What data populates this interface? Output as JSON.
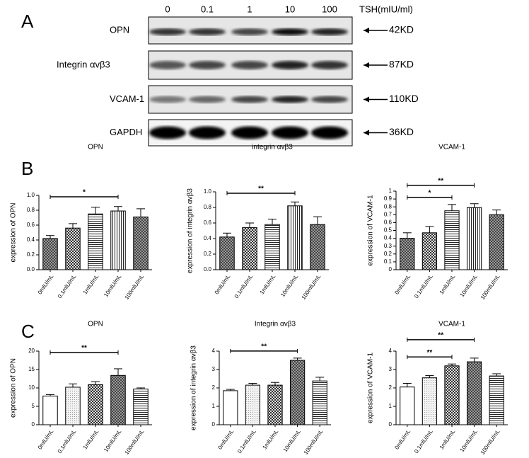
{
  "panel_labels": [
    "A",
    "B",
    "C"
  ],
  "blot": {
    "lanes": [
      "0",
      "0.1",
      "1",
      "10",
      "100"
    ],
    "unit": "TSH(mIU/ml)",
    "rows": [
      {
        "label": "OPN",
        "size": "42KD"
      },
      {
        "label": "Integrin αvβ3",
        "size": "87KD"
      },
      {
        "label": "VCAM-1",
        "size": "110KD"
      },
      {
        "label": "GAPDH",
        "size": "36KD"
      }
    ]
  },
  "chart_data": [
    {
      "type": "bar",
      "title": "OPN",
      "ylabel": "expression of OPN",
      "categories": [
        "0mlU/mL",
        "0.1mlU/mL",
        "1mlU/mL",
        "10mlU/mL",
        "100mlU/mL"
      ],
      "values": [
        0.42,
        0.56,
        0.75,
        0.79,
        0.71
      ],
      "error": [
        0.04,
        0.06,
        0.09,
        0.06,
        0.11
      ],
      "fills": [
        "check-dark",
        "check",
        "hlines",
        "vlines",
        "check-dark"
      ],
      "ylim": [
        0,
        1
      ],
      "yticks": [
        {
          "value": 0,
          "label": "0.0"
        },
        0.2,
        0.4,
        0.6,
        0.8,
        {
          "value": 1,
          "label": "1.0"
        }
      ],
      "brackets": [
        {
          "label": "*",
          "from": 0,
          "to": 3
        }
      ]
    },
    {
      "type": "bar",
      "title": "integrin αvβ3",
      "ylabel": "expression of integrin αvβ3",
      "categories": [
        "0mlU/mL",
        "0.1mlU/mL",
        "1mlU/mL",
        "10mlU/mL",
        "100mlU/mL"
      ],
      "values": [
        0.42,
        0.54,
        0.58,
        0.82,
        0.58
      ],
      "error": [
        0.05,
        0.06,
        0.07,
        0.05,
        0.1
      ],
      "fills": [
        "check-dark",
        "check",
        "hlines",
        "vlines",
        "check-dark"
      ],
      "ylim": [
        0,
        1
      ],
      "yticks": [
        {
          "value": 0,
          "label": "0.0"
        },
        0.2,
        0.4,
        0.6,
        0.8,
        {
          "value": 1,
          "label": "1.0"
        }
      ],
      "brackets": [
        {
          "label": "**",
          "from": 0,
          "to": 3
        }
      ]
    },
    {
      "type": "bar",
      "title": "VCAM-1",
      "ylabel": "expression of VCAM-1",
      "categories": [
        "0mlU/mL",
        "0.1mlU/mL",
        "1mlU/mL",
        "10mlU/mL",
        "100mlU/mL"
      ],
      "values": [
        0.4,
        0.47,
        0.75,
        0.79,
        0.7
      ],
      "error": [
        0.07,
        0.08,
        0.08,
        0.05,
        0.06
      ],
      "fills": [
        "check-dark",
        "check",
        "hlines",
        "vlines",
        "check-dark"
      ],
      "ylim": [
        0,
        1
      ],
      "yticks": [
        0,
        0.1,
        0.2,
        0.3,
        0.4,
        0.5,
        0.6,
        0.7,
        0.8,
        0.9,
        1
      ],
      "brackets": [
        {
          "label": "*",
          "from": 0,
          "to": 2
        },
        {
          "label": "**",
          "from": 0,
          "to": 3
        }
      ]
    },
    {
      "type": "bar",
      "title": "OPN",
      "ylabel": "expression of OPN",
      "categories": [
        "0mlU/mL",
        "0.1mlU/mL",
        "1mlU/mL",
        "10mlU/mL",
        "100mlU/mL"
      ],
      "values": [
        7.8,
        10.2,
        10.9,
        13.4,
        9.7
      ],
      "error": [
        0.4,
        0.9,
        0.8,
        1.8,
        0.3
      ],
      "fills": [
        "white",
        "dots",
        "check",
        "check-dark",
        "hlines"
      ],
      "ylim": [
        0,
        20
      ],
      "yticks": [
        0,
        5,
        10,
        15,
        20
      ],
      "brackets": [
        {
          "label": "**",
          "from": 0,
          "to": 3
        }
      ]
    },
    {
      "type": "bar",
      "title": "Integrin αvβ3",
      "ylabel": "expression of integrin αvβ3",
      "categories": [
        "0mlU/mL",
        "0.1mlU/mL",
        "1mlU/mL",
        "10mlU/mL",
        "100mlU/mL"
      ],
      "values": [
        1.85,
        2.15,
        2.15,
        3.5,
        2.38
      ],
      "error": [
        0.07,
        0.1,
        0.15,
        0.12,
        0.2
      ],
      "fills": [
        "white",
        "dots",
        "check",
        "check-dark",
        "hlines"
      ],
      "ylim": [
        0,
        4
      ],
      "yticks": [
        0,
        1,
        2,
        3,
        4
      ],
      "brackets": [
        {
          "label": "**",
          "from": 0,
          "to": 3
        }
      ]
    },
    {
      "type": "bar",
      "title": "VCAM-1",
      "ylabel": "expression of VCAM-1",
      "categories": [
        "0mlU/mL",
        "0.1mlU/mL",
        "1mlU/mL",
        "10mlU/mL",
        "100mlU/mL"
      ],
      "values": [
        2.05,
        2.55,
        3.2,
        3.42,
        2.65
      ],
      "error": [
        0.2,
        0.12,
        0.1,
        0.2,
        0.12
      ],
      "fills": [
        "white",
        "dots",
        "check",
        "check-dark",
        "hlines"
      ],
      "ylim": [
        0,
        4
      ],
      "yticks": [
        0,
        1,
        2,
        3,
        4
      ],
      "brackets": [
        {
          "label": "**",
          "from": 0,
          "to": 2
        },
        {
          "label": "**",
          "from": 0,
          "to": 3
        }
      ]
    }
  ]
}
